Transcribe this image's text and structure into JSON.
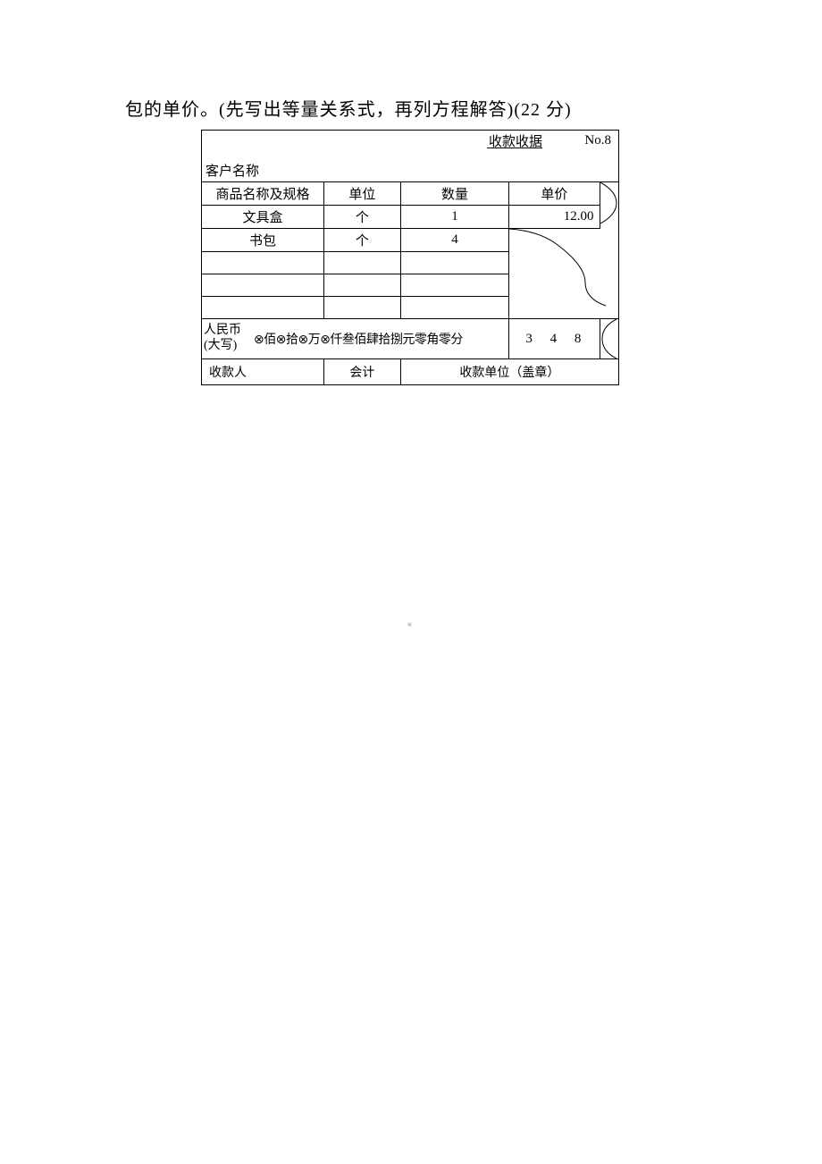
{
  "question": {
    "text_line": "包的单价。(先写出等量关系式，再列方程解答)(22 分)"
  },
  "receipt": {
    "title": "收款收据",
    "number": "No.8",
    "customer_label": "客户名称",
    "columns": {
      "name": "商品名称及规格",
      "unit": "单位",
      "qty": "数量",
      "price": "单价"
    },
    "rows": [
      {
        "name": "文具盒",
        "unit": "个",
        "qty": "1",
        "price": "12.00"
      },
      {
        "name": "书包",
        "unit": "个",
        "qty": "4",
        "price": ""
      },
      {
        "name": "",
        "unit": "",
        "qty": "",
        "price": ""
      },
      {
        "name": "",
        "unit": "",
        "qty": "",
        "price": ""
      },
      {
        "name": "",
        "unit": "",
        "qty": "",
        "price": ""
      }
    ],
    "rmb": {
      "label_line1": "人民币",
      "label_line2": "(大写)",
      "text_parts": [
        "佰",
        "拾",
        "万",
        "仟叁佰肆拾捌元零角零分"
      ],
      "digits": "3 4 8"
    },
    "footer": {
      "cashier": "收款人",
      "accountant": "会计",
      "unit_stamp": "收款单位（盖章）"
    },
    "style": {
      "border_color": "#000000",
      "bg_color": "#ffffff",
      "font_size_main": 15,
      "font_size_question": 20,
      "circle_x_glyph": "⊗"
    }
  },
  "watermark": "■"
}
